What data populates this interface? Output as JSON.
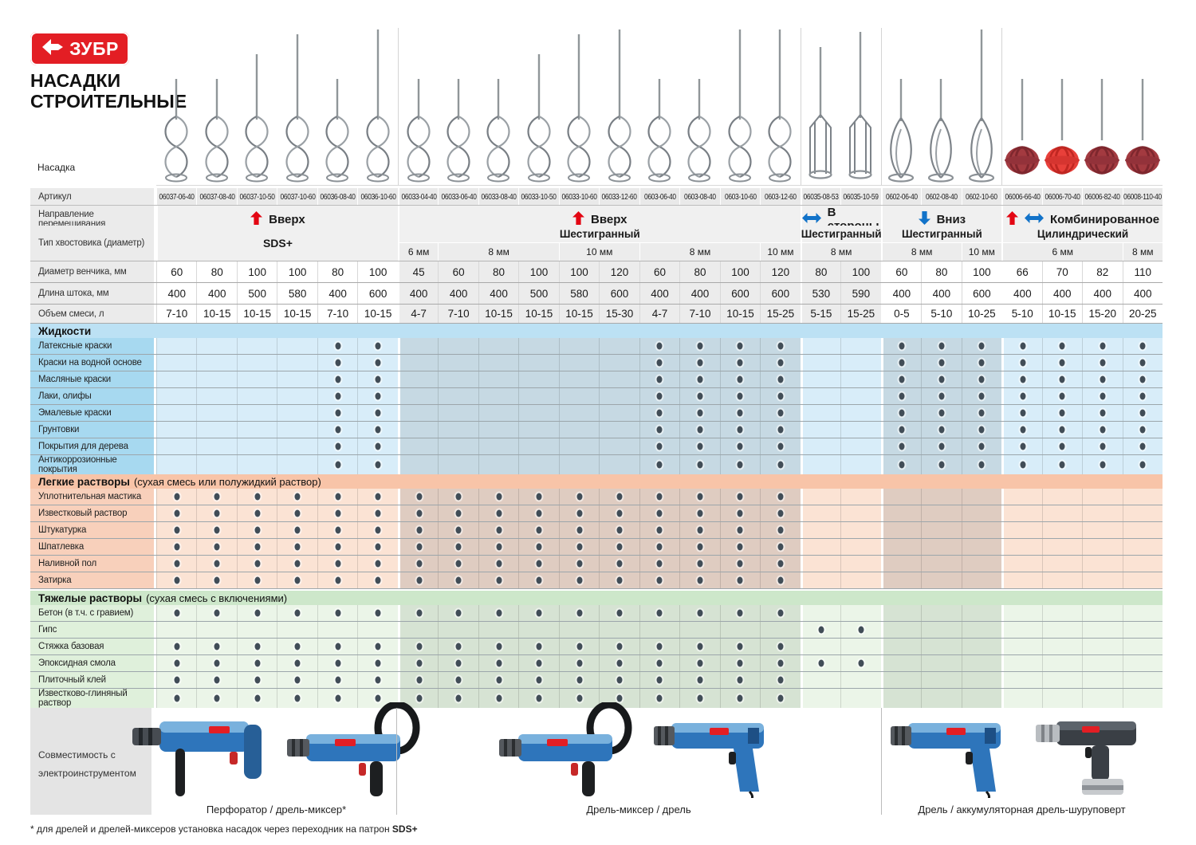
{
  "brand": {
    "logo_text": "ЗУБР",
    "title_line1": "НАСАДКИ",
    "title_line2": "СТРОИТЕЛЬНЫЕ"
  },
  "labels": {
    "nozzle": "Насадка",
    "article": "Артикул",
    "direction": "Направление перемешивания",
    "shank": "Тип хвостовика (диаметр)",
    "diameter": "Диаметр венчика, мм",
    "length": "Длина штока, мм",
    "volume": "Объем смеси, л"
  },
  "columns": {
    "articles": [
      "06037-06-40",
      "06037-08-40",
      "06037-10-50",
      "06037-10-60",
      "06036-08-40",
      "06036-10-60",
      "06033-04-40",
      "06033-06-40",
      "06033-08-40",
      "06033-10-50",
      "06033-10-60",
      "06033-12-60",
      "0603-06-40",
      "0603-08-40",
      "0603-10-60",
      "0603-12-60",
      "06035-08-53",
      "06035-10-59",
      "0602-06-40",
      "0602-08-40",
      "0602-10-60",
      "06006-66-40",
      "06006-70-40",
      "06006-82-40",
      "06008-110-40"
    ],
    "diameters": [
      "60",
      "80",
      "100",
      "100",
      "80",
      "100",
      "45",
      "60",
      "80",
      "100",
      "100",
      "120",
      "60",
      "80",
      "100",
      "120",
      "80",
      "100",
      "60",
      "80",
      "100",
      "66",
      "70",
      "82",
      "110"
    ],
    "lengths": [
      "400",
      "400",
      "500",
      "580",
      "400",
      "600",
      "400",
      "400",
      "400",
      "500",
      "580",
      "600",
      "400",
      "400",
      "600",
      "600",
      "530",
      "590",
      "400",
      "400",
      "600",
      "400",
      "400",
      "400",
      "400"
    ],
    "volumes": [
      "7-10",
      "10-15",
      "10-15",
      "10-15",
      "7-10",
      "10-15",
      "4-7",
      "7-10",
      "10-15",
      "10-15",
      "10-15",
      "15-30",
      "4-7",
      "7-10",
      "10-15",
      "15-25",
      "5-15",
      "15-25",
      "0-5",
      "5-10",
      "10-25",
      "5-10",
      "10-15",
      "15-20",
      "20-25"
    ],
    "mixer_types": [
      "spiral",
      "spiral",
      "spiral",
      "spiral",
      "spiral",
      "spiral",
      "spiral",
      "spiral",
      "spiral",
      "spiral",
      "spiral",
      "spiral",
      "spiral",
      "spiral",
      "spiral",
      "spiral",
      "cage",
      "cage",
      "vane",
      "vane",
      "vane",
      "ball-dark",
      "ball-bright",
      "ball-dark",
      "ball-dark"
    ]
  },
  "direction_groups": [
    {
      "label": "Вверх",
      "span": 6,
      "icons": [
        "arrow-up-red"
      ]
    },
    {
      "label": "Вверх",
      "span": 10,
      "icons": [
        "arrow-up-red"
      ]
    },
    {
      "label": "В стороны",
      "span": 2,
      "icons": [
        "arrow-leftright-blue"
      ]
    },
    {
      "label": "Вниз",
      "span": 3,
      "icons": [
        "arrow-down-blue"
      ]
    },
    {
      "label": "Комбинированное",
      "span": 4,
      "icons": [
        "arrow-up-red",
        "arrow-leftright-blue"
      ]
    }
  ],
  "shank_groups": [
    {
      "label": "SDS+",
      "span": 6,
      "sizes": []
    },
    {
      "label": "Шестигранный",
      "span": 10,
      "sizes": [
        {
          "label": "6 мм",
          "span": 1
        },
        {
          "label": "8 мм",
          "span": 3
        },
        {
          "label": "10 мм",
          "span": 2
        },
        {
          "label": "8 мм",
          "span": 3
        },
        {
          "label": "10 мм",
          "span": 1
        }
      ]
    },
    {
      "label": "Шестигранный",
      "span": 2,
      "sizes": [
        {
          "label": "8 мм",
          "span": 2
        }
      ]
    },
    {
      "label": "Шестигранный",
      "span": 3,
      "sizes": [
        {
          "label": "8 мм",
          "span": 2
        },
        {
          "label": "10 мм",
          "span": 1
        }
      ]
    },
    {
      "label": "Цилиндрический",
      "span": 4,
      "sizes": [
        {
          "label": "6 мм",
          "span": 3
        },
        {
          "label": "8 мм",
          "span": 1
        }
      ]
    }
  ],
  "sections": [
    {
      "title": "Жидкости",
      "subtitle": "",
      "theme": "blue",
      "rows": [
        {
          "label": "Латексные краски",
          "dots": [
            5,
            6,
            13,
            14,
            15,
            16,
            19,
            20,
            21,
            22,
            23,
            24,
            25
          ]
        },
        {
          "label": "Краски на водной основе",
          "dots": [
            5,
            6,
            13,
            14,
            15,
            16,
            19,
            20,
            21,
            22,
            23,
            24,
            25
          ]
        },
        {
          "label": "Масляные краски",
          "dots": [
            5,
            6,
            13,
            14,
            15,
            16,
            19,
            20,
            21,
            22,
            23,
            24,
            25
          ]
        },
        {
          "label": "Лаки, олифы",
          "dots": [
            5,
            6,
            13,
            14,
            15,
            16,
            19,
            20,
            21,
            22,
            23,
            24,
            25
          ]
        },
        {
          "label": "Эмалевые краски",
          "dots": [
            5,
            6,
            13,
            14,
            15,
            16,
            19,
            20,
            21,
            22,
            23,
            24,
            25
          ]
        },
        {
          "label": "Грунтовки",
          "dots": [
            5,
            6,
            13,
            14,
            15,
            16,
            19,
            20,
            21,
            22,
            23,
            24,
            25
          ]
        },
        {
          "label": "Покрытия для дерева",
          "dots": [
            5,
            6,
            13,
            14,
            15,
            16,
            19,
            20,
            21,
            22,
            23,
            24,
            25
          ]
        },
        {
          "label": "Антикоррозионные покрытия",
          "dots": [
            5,
            6,
            13,
            14,
            15,
            16,
            19,
            20,
            21,
            22,
            23,
            24,
            25
          ]
        }
      ]
    },
    {
      "title": "Легкие растворы",
      "subtitle": "(сухая смесь или полужидкий раствор)",
      "theme": "orange",
      "rows": [
        {
          "label": "Уплотнительная мастика",
          "dots": [
            1,
            2,
            3,
            4,
            5,
            6,
            7,
            8,
            9,
            10,
            11,
            12,
            13,
            14,
            15,
            16
          ]
        },
        {
          "label": "Известковый раствор",
          "dots": [
            1,
            2,
            3,
            4,
            5,
            6,
            7,
            8,
            9,
            10,
            11,
            12,
            13,
            14,
            15,
            16
          ]
        },
        {
          "label": "Штукатурка",
          "dots": [
            1,
            2,
            3,
            4,
            5,
            6,
            7,
            8,
            9,
            10,
            11,
            12,
            13,
            14,
            15,
            16
          ]
        },
        {
          "label": "Шпатлевка",
          "dots": [
            1,
            2,
            3,
            4,
            5,
            6,
            7,
            8,
            9,
            10,
            11,
            12,
            13,
            14,
            15,
            16
          ]
        },
        {
          "label": "Наливной пол",
          "dots": [
            1,
            2,
            3,
            4,
            5,
            6,
            7,
            8,
            9,
            10,
            11,
            12,
            13,
            14,
            15,
            16
          ]
        },
        {
          "label": "Затирка",
          "dots": [
            1,
            2,
            3,
            4,
            5,
            6,
            7,
            8,
            9,
            10,
            11,
            12,
            13,
            14,
            15,
            16
          ]
        }
      ]
    },
    {
      "title": "Тяжелые растворы",
      "subtitle": "(сухая смесь с включениями)",
      "theme": "green",
      "rows": [
        {
          "label": "Бетон (в т.ч. с гравием)",
          "dots": [
            1,
            2,
            3,
            4,
            5,
            6,
            7,
            8,
            9,
            10,
            11,
            12,
            13,
            14,
            15,
            16
          ]
        },
        {
          "label": "Гипс",
          "dots": [
            17,
            18
          ]
        },
        {
          "label": "Стяжка базовая",
          "dots": [
            1,
            2,
            3,
            4,
            5,
            6,
            7,
            8,
            9,
            10,
            11,
            12,
            13,
            14,
            15,
            16
          ]
        },
        {
          "label": "Эпоксидная смола",
          "dots": [
            1,
            2,
            3,
            4,
            5,
            6,
            7,
            8,
            9,
            10,
            11,
            12,
            13,
            14,
            15,
            16,
            17,
            18
          ]
        },
        {
          "label": "Плиточный клей",
          "dots": [
            1,
            2,
            3,
            4,
            5,
            6,
            7,
            8,
            9,
            10,
            11,
            12,
            13,
            14,
            15,
            16
          ]
        },
        {
          "label": "Известково-глиняный раствор",
          "dots": [
            1,
            2,
            3,
            4,
            5,
            6,
            7,
            8,
            9,
            10,
            11,
            12,
            13,
            14,
            15,
            16
          ]
        }
      ]
    }
  ],
  "compatibility": {
    "label": "Совместимость с электроинструментом",
    "groups": [
      {
        "caption": "Перфоратор / дрель-миксер*",
        "tools": [
          "perforator",
          "mixer-drill"
        ]
      },
      {
        "caption": "Дрель-миксер / дрель",
        "tools": [
          "mixer-drill",
          "drill"
        ]
      },
      {
        "caption": "Дрель / аккумуляторная дрель-шуруповерт",
        "tools": [
          "drill",
          "cordless-screwdriver"
        ]
      }
    ]
  },
  "footnote": {
    "prefix": "* для дрелей и дрелей-миксеров установка насадок через переходник на патрон ",
    "bold": "SDS+"
  },
  "colors": {
    "brand_red": "#e31e24",
    "arrow_red": "#e30613",
    "arrow_blue": "#1273c9",
    "dot": "#414d57"
  }
}
